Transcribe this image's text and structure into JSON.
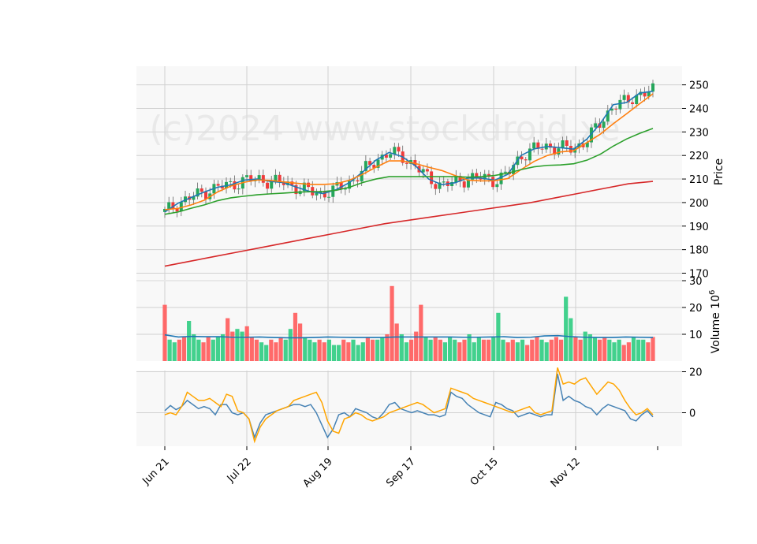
{
  "watermark": "(c)2024 www.stockdroid.xe",
  "chart_data": {
    "type": "candlestick",
    "x_tick_labels": [
      "Jun 21",
      "Jul 22",
      "Aug 19",
      "Sep 17",
      "Oct 15",
      "Nov 12"
    ],
    "price_panel": {
      "ylabel": "Price",
      "ylim": [
        169,
        256
      ],
      "y_ticks": [
        170,
        180,
        190,
        200,
        210,
        220,
        230,
        240,
        250
      ],
      "grid": true,
      "moving_averages": [
        {
          "color": "#1f77b4",
          "values": [
            196,
            199.7,
            202.2,
            204.5,
            206.5,
            207.5,
            209.5,
            210,
            209,
            208.5,
            206.5,
            204.7,
            203.8,
            205.5,
            208.5,
            213,
            218,
            221.3,
            219.5,
            215.6,
            210,
            207.6,
            208.4,
            210.5,
            210.4,
            209.5,
            212,
            220,
            222.8,
            223.8,
            223.3,
            222.7,
            227,
            233.5,
            241.6,
            242.5,
            246.5,
            247.3
          ]
        },
        {
          "color": "#ff7f0e",
          "values": [
            197,
            197.5,
            199,
            201,
            204.5,
            207,
            208.6,
            209.6,
            209.4,
            208.8,
            208.2,
            207.7,
            207.7,
            208,
            209.5,
            212,
            215,
            217.7,
            217.7,
            216.6,
            215,
            213.6,
            211.5,
            209.5,
            209.2,
            209.3,
            210.2,
            214,
            217.5,
            220,
            221.5,
            222,
            225.5,
            229,
            233.5,
            237.7,
            242,
            246.2
          ]
        },
        {
          "color": "#2ca02c",
          "values": [
            195,
            196,
            197.6,
            199,
            200.8,
            202,
            202.7,
            203.3,
            203.7,
            204,
            204.4,
            204.6,
            204.7,
            205.2,
            206.5,
            208.5,
            210,
            211,
            211,
            211,
            211,
            211,
            211,
            210.8,
            211,
            211.5,
            212.5,
            214,
            215.2,
            215.8,
            216,
            216.5,
            218,
            220.5,
            224,
            227,
            229.4,
            231.5
          ]
        },
        {
          "color": "#d62728",
          "values": [
            173,
            175,
            177,
            179,
            181,
            183,
            185,
            187,
            189,
            191,
            192.5,
            194,
            195.5,
            197,
            198.5,
            200,
            202,
            204,
            206,
            208,
            209
          ]
        }
      ]
    },
    "volume_panel": {
      "ylabel": "Volume  $10^6$",
      "ylim": [
        0,
        30
      ],
      "y_ticks": [
        10,
        20,
        30
      ],
      "avg_color": "#1f77b4",
      "avg_values": [
        9.8,
        9.0,
        9.2,
        9.1,
        9.1,
        8.9,
        8.9,
        9.0,
        8.8,
        8.7,
        8.7,
        8.8,
        9.0,
        8.9,
        8.8,
        8.8,
        8.8,
        9.0,
        9.0,
        9.0,
        9.0,
        9.0,
        8.9,
        8.9,
        9.0,
        9.1,
        8.8,
        8.9,
        9.4,
        9.5,
        9.1,
        8.9,
        8.8,
        8.8,
        9.0,
        8.9,
        8.8
      ]
    },
    "oscillator_panel": {
      "y_ticks": [
        0,
        20
      ],
      "ylim": [
        -17,
        25
      ],
      "series": [
        {
          "color": "#4682b4",
          "values": [
            1,
            3.5,
            1.5,
            3,
            6,
            4,
            2,
            3,
            2,
            -1,
            4,
            4,
            0,
            -1,
            0,
            -3,
            -12,
            -5,
            -1,
            0,
            1,
            2,
            3,
            4,
            4,
            3,
            4,
            0,
            -6,
            -12,
            -8,
            -1,
            0,
            -2,
            2,
            1,
            0,
            -2,
            -3,
            0,
            4,
            5,
            2,
            1,
            0,
            1,
            0,
            -1,
            -1,
            -2,
            -1,
            10,
            8,
            7,
            4,
            2,
            0,
            -1,
            -2,
            5,
            4,
            2,
            1,
            -2,
            -1,
            0,
            -1,
            -2,
            -1,
            -1,
            19,
            6,
            8,
            6,
            5,
            3,
            2,
            -1,
            2,
            4,
            3,
            2,
            1,
            -3,
            -4,
            -1,
            1,
            -2
          ]
        },
        {
          "color": "#ffa500",
          "values": [
            -1,
            0,
            -1,
            3,
            10,
            8,
            6,
            6,
            7,
            5,
            3,
            9,
            8,
            1,
            0,
            -3,
            -14,
            -7,
            -3,
            -1,
            1,
            2,
            3,
            6,
            7,
            8,
            9,
            10,
            5,
            -4,
            -9,
            -10,
            -3,
            -2,
            0,
            -1,
            -3,
            -4,
            -3,
            -2,
            0,
            1,
            2,
            3,
            4,
            5,
            4,
            2,
            0,
            1,
            2,
            12,
            11,
            10,
            9,
            7,
            6,
            5,
            4,
            3,
            2,
            1,
            0,
            1,
            2,
            3,
            0,
            -1,
            0,
            1,
            22,
            14,
            15,
            14,
            16,
            17,
            13,
            9,
            12,
            15,
            14,
            11,
            6,
            2,
            -1,
            0,
            2,
            -1
          ]
        }
      ]
    }
  }
}
